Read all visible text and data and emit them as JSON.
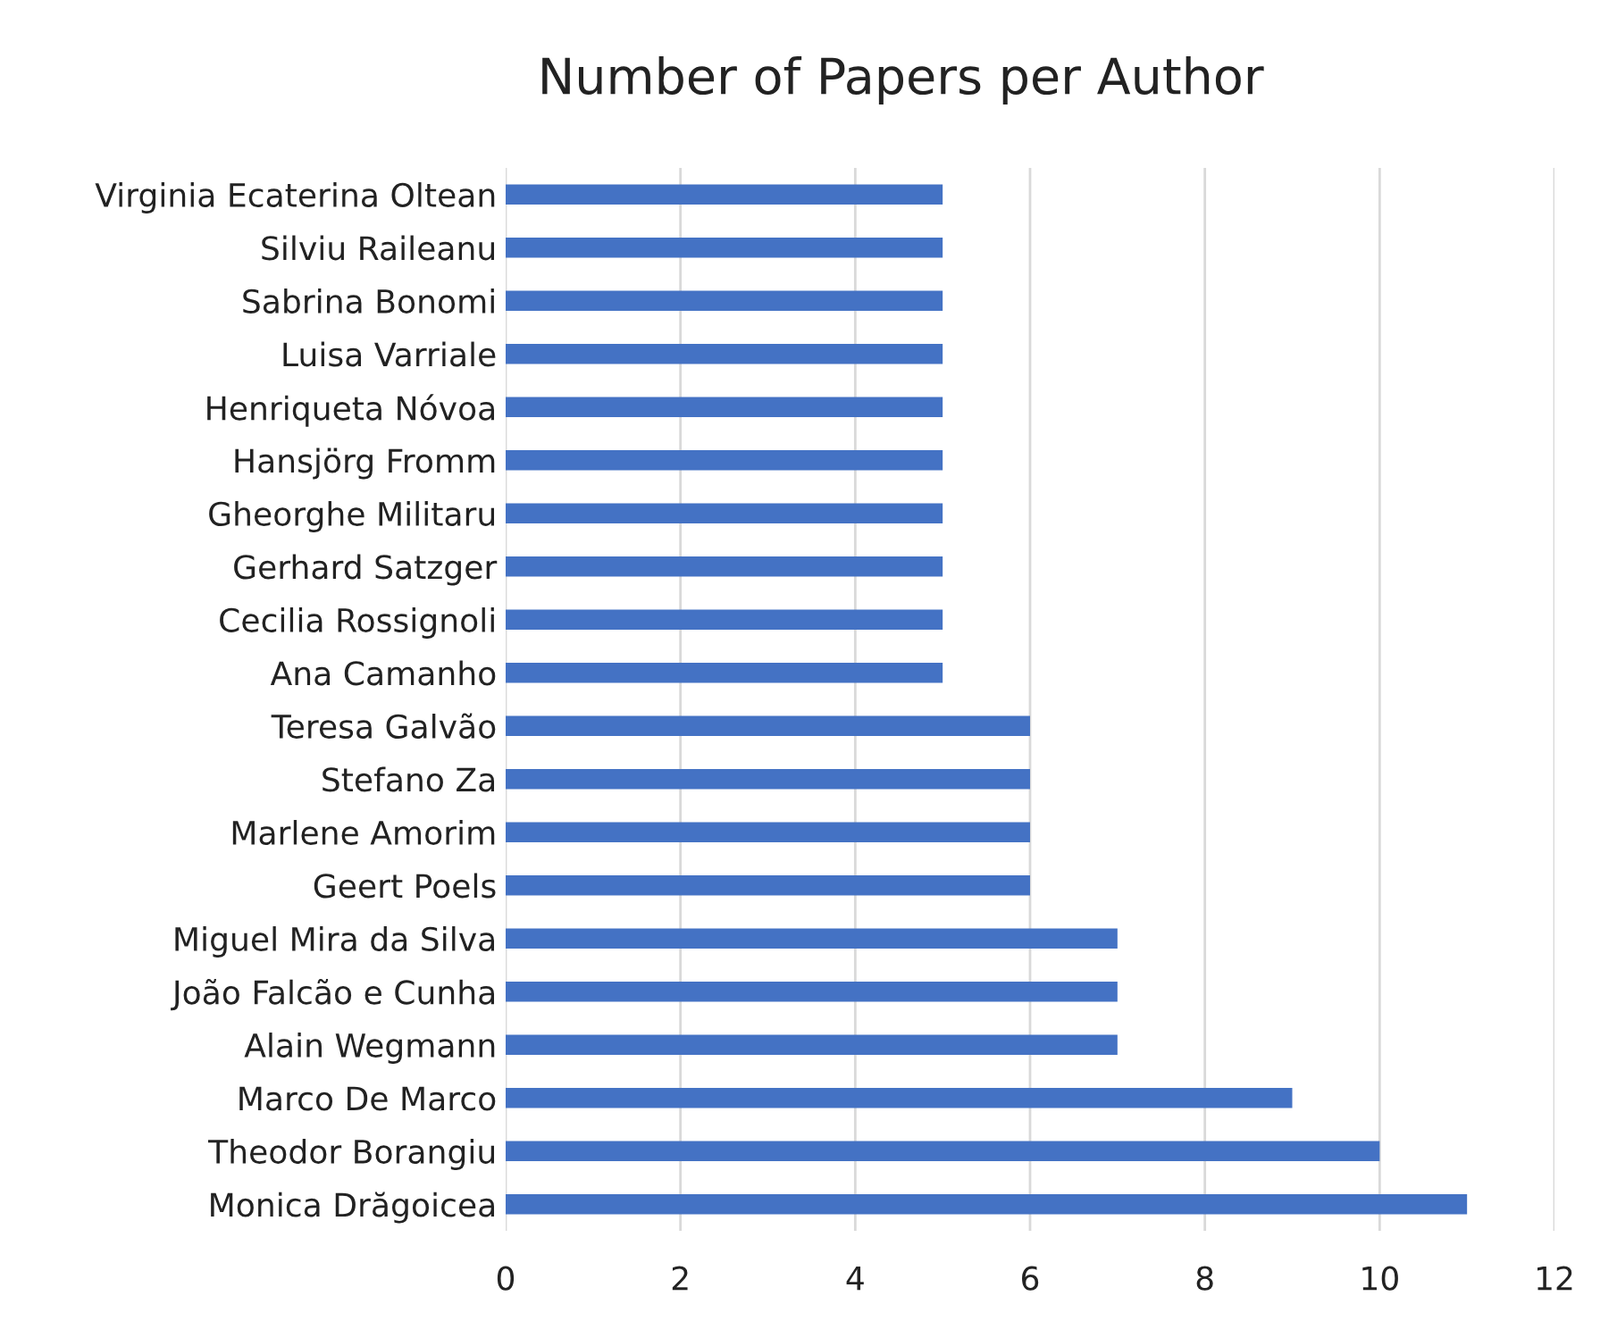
{
  "chart_data": {
    "type": "bar",
    "orientation": "horizontal",
    "title": "Number of Papers per Author",
    "categories": [
      "Virginia Ecaterina Oltean",
      "Silviu Raileanu",
      "Sabrina Bonomi",
      "Luisa Varriale",
      "Henriqueta Nóvoa",
      "Hansjörg Fromm",
      "Gheorghe Militaru",
      "Gerhard Satzger",
      "Cecilia Rossignoli",
      "Ana Camanho",
      "Teresa Galvão",
      "Stefano Za",
      "Marlene Amorim",
      "Geert Poels",
      "Miguel Mira da Silva",
      "João Falcão e Cunha",
      "Alain Wegmann",
      "Marco De Marco",
      "Theodor Borangiu",
      "Monica Drăgoicea"
    ],
    "values": [
      5,
      5,
      5,
      5,
      5,
      5,
      5,
      5,
      5,
      5,
      6,
      6,
      6,
      6,
      7,
      7,
      7,
      9,
      10,
      11
    ],
    "color": "#4472c4",
    "xlim": [
      0,
      12
    ],
    "xticks": [
      0,
      2,
      4,
      6,
      8,
      10,
      12
    ],
    "grid": "x",
    "legend": false
  }
}
